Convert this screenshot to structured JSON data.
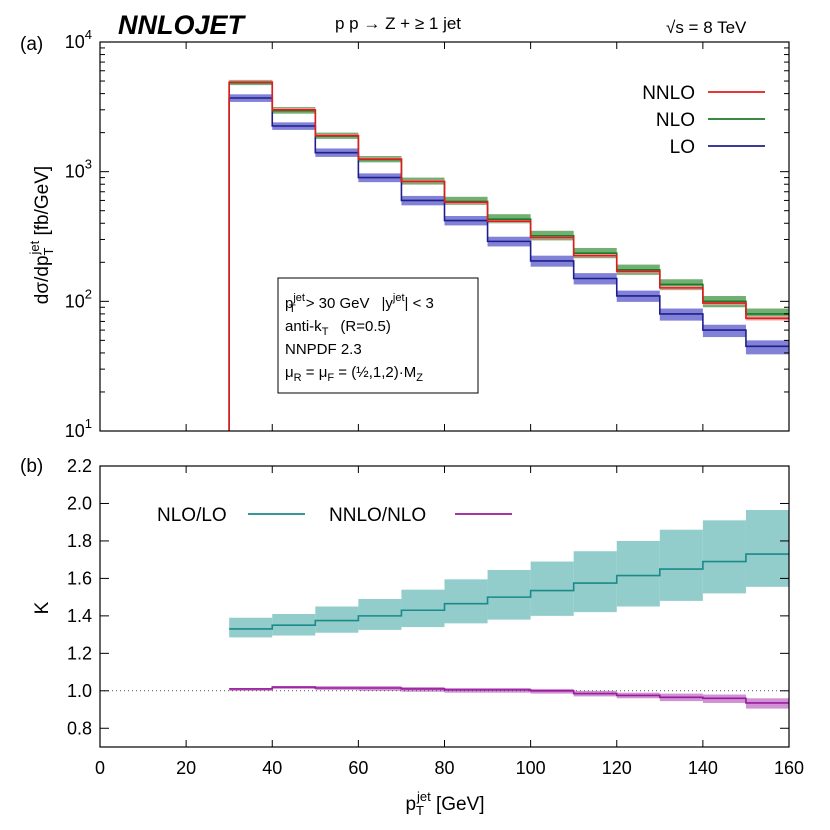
{
  "header": {
    "brand": "NNLOJET",
    "process": "p p → Z + ≥ 1 jet",
    "energy": "√s = 8 TeV"
  },
  "info_box": {
    "line1_main": "p",
    "line1_sup": "jet",
    "line1_sub": "T",
    "line1_rest": "> 30 GeV",
    "line1_y": "|y",
    "line1_ysup": "jet",
    "line1_yrest": "| < 3",
    "line2_main": "anti-k",
    "line2_sub": "T",
    "line2_rest": "(R=0.5)",
    "line3": "NNPDF 2.3",
    "line4_a": "μ",
    "line4_asub": "R",
    "line4_b": " = μ",
    "line4_bsub": "F",
    "line4_c": " = (½,1,2)·M",
    "line4_csub": "Z"
  },
  "chart_data": [
    {
      "panel_label": "(a)",
      "type": "line",
      "step": true,
      "log_y": true,
      "ylabel_main": "dσ/dp",
      "ylabel_sub": "T",
      "ylabel_sup": "jet",
      "ylabel_unit": " [fb/GeV]",
      "xlim": [
        0,
        160
      ],
      "ylim": [
        10,
        10000
      ],
      "y_ticks": [
        {
          "value": 10,
          "base": "10",
          "exp": "1"
        },
        {
          "value": 100,
          "base": "10",
          "exp": "2"
        },
        {
          "value": 1000,
          "base": "10",
          "exp": "3"
        },
        {
          "value": 10000,
          "base": "10",
          "exp": "4"
        }
      ],
      "bin_edges": [
        30,
        40,
        50,
        60,
        70,
        80,
        90,
        100,
        110,
        120,
        130,
        140,
        150,
        160
      ],
      "legend_position": "top-right",
      "series": [
        {
          "name": "NNLO",
          "color": "#e41a1c",
          "band_color": "#f4a6a6",
          "values": [
            4900,
            3000,
            1900,
            1250,
            840,
            580,
            415,
            310,
            225,
            170,
            127,
            97,
            74
          ],
          "low": [
            4780,
            2930,
            1860,
            1220,
            820,
            566,
            405,
            302,
            219,
            165,
            123,
            94,
            71
          ],
          "high": [
            5050,
            3090,
            1950,
            1285,
            865,
            597,
            428,
            320,
            232,
            176,
            131,
            100,
            77
          ]
        },
        {
          "name": "NLO",
          "color": "#1a7a2a",
          "band_color": "#5aa05a",
          "values": [
            4850,
            2950,
            1880,
            1240,
            840,
            590,
            430,
            320,
            235,
            175,
            135,
            100,
            80
          ],
          "low": [
            4650,
            2800,
            1790,
            1180,
            795,
            555,
            400,
            295,
            215,
            160,
            122,
            90,
            72
          ],
          "high": [
            5100,
            3150,
            2000,
            1320,
            900,
            640,
            470,
            350,
            258,
            192,
            148,
            110,
            88
          ]
        },
        {
          "name": "LO",
          "color": "#1f1f8c",
          "band_color": "#6b6bd0",
          "values": [
            3700,
            2250,
            1400,
            900,
            600,
            420,
            290,
            205,
            150,
            110,
            80,
            60,
            45
          ],
          "low": [
            3450,
            2100,
            1300,
            830,
            550,
            385,
            265,
            185,
            135,
            99,
            71,
            53,
            39
          ],
          "high": [
            3950,
            2400,
            1510,
            970,
            650,
            455,
            315,
            225,
            165,
            121,
            88,
            66,
            50
          ]
        }
      ]
    },
    {
      "panel_label": "(b)",
      "type": "line",
      "step": true,
      "xlabel_main": "p",
      "xlabel_sub": "T",
      "xlabel_sup": "jet",
      "xlabel_unit": " [GeV]",
      "ylabel": "K",
      "xlim": [
        0,
        160
      ],
      "ylim": [
        0.7,
        2.2
      ],
      "x_ticks": [
        0,
        20,
        40,
        60,
        80,
        100,
        120,
        140,
        160
      ],
      "y_ticks": [
        "0.8",
        "1.0",
        "1.2",
        "1.4",
        "1.6",
        "1.8",
        "2.0",
        "2.2"
      ],
      "reference_line": 1.0,
      "bin_edges": [
        30,
        40,
        50,
        60,
        70,
        80,
        90,
        100,
        110,
        120,
        130,
        140,
        150,
        160
      ],
      "legend_position": "top-left",
      "series": [
        {
          "name": "NLO/LO",
          "color": "#1a8a8a",
          "band_color": "#7fc4c2",
          "values": [
            1.33,
            1.35,
            1.375,
            1.4,
            1.43,
            1.465,
            1.5,
            1.535,
            1.575,
            1.615,
            1.65,
            1.69,
            1.73
          ],
          "low": [
            1.285,
            1.295,
            1.31,
            1.325,
            1.34,
            1.36,
            1.38,
            1.4,
            1.42,
            1.45,
            1.48,
            1.52,
            1.555
          ],
          "high": [
            1.39,
            1.41,
            1.45,
            1.49,
            1.54,
            1.595,
            1.645,
            1.69,
            1.745,
            1.8,
            1.86,
            1.91,
            1.965
          ]
        },
        {
          "name": "NNLO/NLO",
          "color": "#9a1a9a",
          "band_color": "#c77fcc",
          "values": [
            1.01,
            1.02,
            1.015,
            1.015,
            1.01,
            1.005,
            1.005,
            1.0,
            0.985,
            0.975,
            0.965,
            0.96,
            0.935
          ],
          "low": [
            1.0,
            1.01,
            1.005,
            1.0,
            0.995,
            0.99,
            0.99,
            0.985,
            0.97,
            0.96,
            0.945,
            0.935,
            0.905
          ],
          "high": [
            1.015,
            1.025,
            1.025,
            1.025,
            1.02,
            1.015,
            1.015,
            1.01,
            1.0,
            0.99,
            0.985,
            0.98,
            0.96
          ]
        }
      ]
    }
  ]
}
